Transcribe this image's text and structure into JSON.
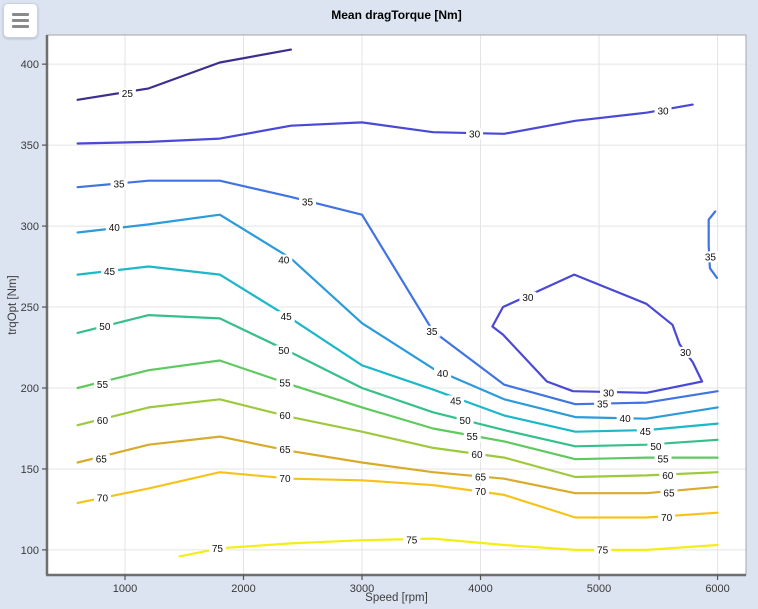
{
  "toolbar": {
    "menu_icon": "hamburger-menu"
  },
  "colors": {
    "figure_bg": "#dce4f1",
    "plot_bg": "#ffffff",
    "grid": "#e4e4e4",
    "spine_dark": "#6f6f6f",
    "spine_light": "#a6a6a6",
    "tick_text": "#3a3a3a",
    "contour_label_text": "#111111"
  },
  "chart_data": {
    "type": "contour",
    "title": "Mean dragTorque [Nm]",
    "xlabel": "Speed [rpm]",
    "ylabel": "trqOpt [Nm]",
    "x_range": [
      342,
      6240
    ],
    "y_range": [
      84.5,
      418
    ],
    "x_ticks": [
      1000,
      2000,
      3000,
      4000,
      5000,
      6000
    ],
    "y_ticks": [
      100,
      150,
      200,
      250,
      300,
      350,
      400
    ],
    "grid": true,
    "levels": [
      {
        "level": 25,
        "color": "#3d2e8e",
        "paths": [
          [
            [
              600,
              378
            ],
            [
              1200,
              385
            ],
            [
              1800,
              401
            ],
            [
              2400,
              409
            ]
          ]
        ],
        "labels": [
          [
            1020,
            382
          ]
        ]
      },
      {
        "level": 30,
        "color": "#4a48d7",
        "paths": [
          [
            [
              600,
              351
            ],
            [
              1200,
              352
            ],
            [
              1800,
              354
            ],
            [
              2400,
              362
            ],
            [
              3000,
              364
            ],
            [
              3600,
              358
            ],
            [
              4200,
              357
            ],
            [
              4800,
              365
            ],
            [
              5400,
              370
            ],
            [
              5790,
              375
            ]
          ],
          [
            [
              4100,
              238
            ],
            [
              4190,
              250
            ],
            [
              4400,
              257
            ],
            [
              4790,
              270
            ],
            [
              5400,
              252
            ],
            [
              5620,
              239
            ],
            [
              5680,
              227
            ],
            [
              5790,
              216
            ],
            [
              5870,
              204
            ],
            [
              5400,
              197
            ],
            [
              4780,
              198
            ],
            [
              4560,
              204
            ],
            [
              4190,
              233
            ],
            [
              4100,
              238
            ]
          ]
        ],
        "labels": [
          [
            3950,
            357
          ],
          [
            5540,
            371
          ],
          [
            4400,
            256
          ],
          [
            5730,
            222
          ],
          [
            5080,
            197
          ]
        ]
      },
      {
        "level": 35,
        "color": "#4173e3",
        "paths": [
          [
            [
              600,
              324
            ],
            [
              1200,
              328
            ],
            [
              1800,
              328
            ],
            [
              2400,
              318
            ],
            [
              3000,
              307
            ],
            [
              3600,
              235
            ],
            [
              4200,
              202
            ],
            [
              4800,
              190
            ],
            [
              5400,
              191
            ],
            [
              6000,
              198
            ]
          ],
          [
            [
              5980,
              309
            ],
            [
              5925,
              304
            ],
            [
              5925,
              288
            ],
            [
              5935,
              274
            ],
            [
              5995,
              268
            ]
          ]
        ],
        "labels": [
          [
            950,
            326
          ],
          [
            2540,
            315
          ],
          [
            3590,
            235
          ],
          [
            5030,
            190
          ],
          [
            5940,
            281
          ]
        ]
      },
      {
        "level": 40,
        "color": "#2b9bdc",
        "paths": [
          [
            [
              600,
              296
            ],
            [
              1200,
              301
            ],
            [
              1800,
              307
            ],
            [
              2400,
              280
            ],
            [
              3000,
              240
            ],
            [
              3600,
              212
            ],
            [
              4200,
              193
            ],
            [
              4800,
              182
            ],
            [
              5400,
              181
            ],
            [
              6000,
              188
            ]
          ]
        ],
        "labels": [
          [
            910,
            299
          ],
          [
            2340,
            279
          ],
          [
            3680,
            209
          ],
          [
            5220,
            181
          ]
        ]
      },
      {
        "level": 45,
        "color": "#1cb8c8",
        "paths": [
          [
            [
              600,
              270
            ],
            [
              1200,
              275
            ],
            [
              1800,
              270
            ],
            [
              2400,
              243
            ],
            [
              3000,
              214
            ],
            [
              3600,
              199
            ],
            [
              4200,
              183
            ],
            [
              4800,
              173
            ],
            [
              5400,
              174
            ],
            [
              6000,
              178
            ]
          ]
        ],
        "labels": [
          [
            870,
            272
          ],
          [
            2360,
            244
          ],
          [
            3790,
            192
          ],
          [
            5390,
            173
          ]
        ]
      },
      {
        "level": 50,
        "color": "#35c08a",
        "paths": [
          [
            [
              600,
              234
            ],
            [
              1200,
              245
            ],
            [
              1800,
              243
            ],
            [
              2400,
              222
            ],
            [
              3000,
              200
            ],
            [
              3600,
              185
            ],
            [
              4200,
              174
            ],
            [
              4800,
              164
            ],
            [
              5400,
              165
            ],
            [
              6000,
              168
            ]
          ]
        ],
        "labels": [
          [
            830,
            238
          ],
          [
            2340,
            223
          ],
          [
            3870,
            180
          ],
          [
            5480,
            164
          ]
        ]
      },
      {
        "level": 55,
        "color": "#5fc960",
        "paths": [
          [
            [
              600,
              200
            ],
            [
              1200,
              211
            ],
            [
              1800,
              217
            ],
            [
              2400,
              202
            ],
            [
              3000,
              188
            ],
            [
              3600,
              175
            ],
            [
              4200,
              167
            ],
            [
              4800,
              156
            ],
            [
              5400,
              157
            ],
            [
              6000,
              157
            ]
          ]
        ],
        "labels": [
          [
            810,
            202
          ],
          [
            2350,
            203
          ],
          [
            3930,
            170
          ],
          [
            5540,
            156
          ]
        ]
      },
      {
        "level": 60,
        "color": "#9fc93c",
        "paths": [
          [
            [
              600,
              177
            ],
            [
              1200,
              188
            ],
            [
              1800,
              193
            ],
            [
              2400,
              182
            ],
            [
              3000,
              173
            ],
            [
              3600,
              163
            ],
            [
              4200,
              157
            ],
            [
              4800,
              145
            ],
            [
              5400,
              146
            ],
            [
              6000,
              148
            ]
          ]
        ],
        "labels": [
          [
            810,
            180
          ],
          [
            2350,
            183
          ],
          [
            3970,
            159
          ],
          [
            5580,
            146
          ]
        ]
      },
      {
        "level": 65,
        "color": "#d8ab29",
        "paths": [
          [
            [
              600,
              154
            ],
            [
              1200,
              165
            ],
            [
              1800,
              170
            ],
            [
              2400,
              161
            ],
            [
              3000,
              154
            ],
            [
              3600,
              148
            ],
            [
              4200,
              144
            ],
            [
              4800,
              135
            ],
            [
              5400,
              135
            ],
            [
              6000,
              139
            ]
          ]
        ],
        "labels": [
          [
            800,
            156
          ],
          [
            2350,
            162
          ],
          [
            4000,
            145
          ],
          [
            5590,
            135
          ]
        ]
      },
      {
        "level": 70,
        "color": "#f6c31d",
        "paths": [
          [
            [
              600,
              129
            ],
            [
              1200,
              138
            ],
            [
              1800,
              148
            ],
            [
              2400,
              144
            ],
            [
              3000,
              143
            ],
            [
              3600,
              140
            ],
            [
              4200,
              134
            ],
            [
              4800,
              120
            ],
            [
              5400,
              120
            ],
            [
              6000,
              123
            ]
          ]
        ],
        "labels": [
          [
            810,
            132
          ],
          [
            2350,
            144
          ],
          [
            4000,
            136
          ],
          [
            5570,
            120
          ]
        ]
      },
      {
        "level": 75,
        "color": "#f3ee16",
        "paths": [
          [
            [
              1460,
              96
            ],
            [
              1800,
              101
            ],
            [
              2400,
              104
            ],
            [
              3000,
              106
            ],
            [
              3600,
              107
            ],
            [
              4200,
              103
            ],
            [
              4800,
              100
            ],
            [
              5400,
              100
            ],
            [
              6000,
              103
            ]
          ]
        ],
        "labels": [
          [
            1780,
            101
          ],
          [
            3420,
            106
          ],
          [
            5030,
            100
          ]
        ]
      }
    ]
  }
}
